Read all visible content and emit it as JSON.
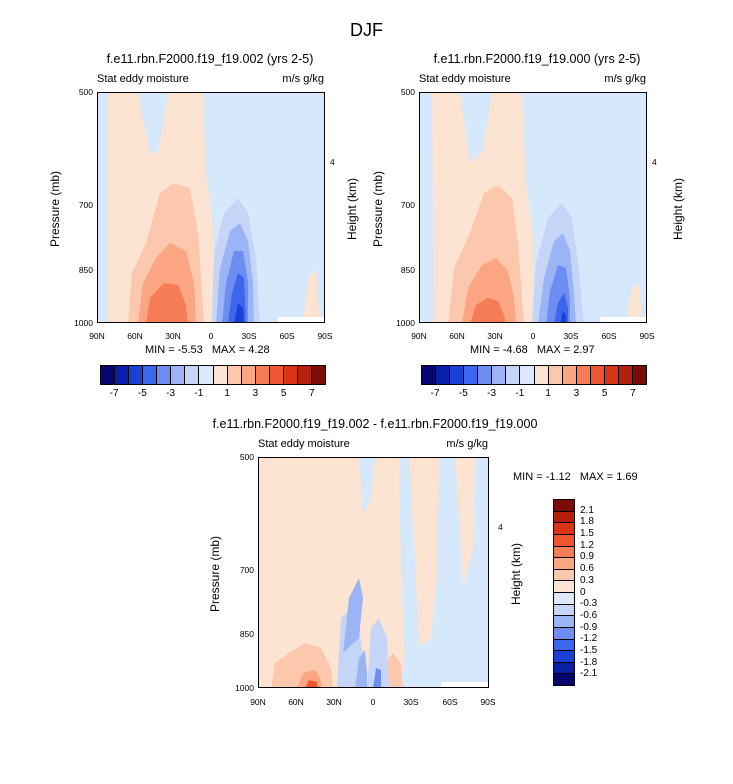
{
  "figure_title": "DJF",
  "chart_data": [
    {
      "type": "heatmap",
      "title": "f.e11.rbn.F2000.f19_f19.002 (yrs 2-5)",
      "left_subtitle": "Stat eddy moisture",
      "right_subtitle": "m/s g/kg",
      "ylabel": "Pressure (mb)",
      "y2label": "Height (km)",
      "x_ticks": [
        "90N",
        "60N",
        "30N",
        "0",
        "30S",
        "60S",
        "90S"
      ],
      "y_ticks": [
        "500",
        "700",
        "850",
        "1000"
      ],
      "y2_ticks": [
        "4"
      ],
      "min_label": "MIN =",
      "min": "-5.53",
      "max_label": "MAX =",
      "max": "4.28",
      "colorbar_labels": [
        "-7",
        "-5",
        "-3",
        "-1",
        "1",
        "3",
        "5",
        "7"
      ],
      "colors": [
        "#06066e",
        "#0a1fa8",
        "#1a40d6",
        "#3c66ee",
        "#6c8ef2",
        "#9bb4f5",
        "#c4d5f8",
        "#dde9fb",
        "#fde3d2",
        "#fcc8ad",
        "#fba582",
        "#f57c55",
        "#ee5531",
        "#dc3317",
        "#b51f0d",
        "#7d0c06"
      ]
    },
    {
      "type": "heatmap",
      "title": "f.e11.rbn.F2000.f19_f19.000 (yrs 2-5)",
      "left_subtitle": "Stat eddy moisture",
      "right_subtitle": "m/s g/kg",
      "ylabel": "Pressure (mb)",
      "y2label": "Height (km)",
      "x_ticks": [
        "90N",
        "60N",
        "30N",
        "0",
        "30S",
        "60S",
        "90S"
      ],
      "y_ticks": [
        "500",
        "700",
        "850",
        "1000"
      ],
      "y2_ticks": [
        "4"
      ],
      "min_label": "MIN =",
      "min": "-4.68",
      "max_label": "MAX =",
      "max": "2.97",
      "colorbar_labels": [
        "-7",
        "-5",
        "-3",
        "-1",
        "1",
        "3",
        "5",
        "7"
      ],
      "colors": [
        "#06066e",
        "#0a1fa8",
        "#1a40d6",
        "#3c66ee",
        "#6c8ef2",
        "#9bb4f5",
        "#c4d5f8",
        "#dde9fb",
        "#fde3d2",
        "#fcc8ad",
        "#fba582",
        "#f57c55",
        "#ee5531",
        "#dc3317",
        "#b51f0d",
        "#7d0c06"
      ]
    },
    {
      "type": "heatmap",
      "title": "f.e11.rbn.F2000.f19_f19.002 - f.e11.rbn.F2000.f19_f19.000",
      "left_subtitle": "Stat eddy moisture",
      "right_subtitle": "m/s g/kg",
      "ylabel": "Pressure (mb)",
      "y2label": "Height (km)",
      "x_ticks": [
        "90N",
        "60N",
        "30N",
        "0",
        "30S",
        "60S",
        "90S"
      ],
      "y_ticks": [
        "500",
        "700",
        "850",
        "1000"
      ],
      "y2_ticks": [
        "4"
      ],
      "min_label": "MIN =",
      "min": "-1.12",
      "max_label": "MAX =",
      "max": "1.69",
      "colorbar_labels": [
        "2.1",
        "1.8",
        "1.5",
        "1.2",
        "0.9",
        "0.6",
        "0.3",
        "0",
        "-0.3",
        "-0.6",
        "-0.9",
        "-1.2",
        "-1.5",
        "-1.8",
        "-2.1"
      ],
      "colors": [
        "#7d0c06",
        "#b51f0d",
        "#dc3317",
        "#ee5531",
        "#f57c55",
        "#fba582",
        "#fcc8ad",
        "#fde3d2",
        "#dde9fb",
        "#c4d5f8",
        "#9bb4f5",
        "#6c8ef2",
        "#3c66ee",
        "#1a40d6",
        "#0a1fa8",
        "#06066e"
      ]
    }
  ]
}
